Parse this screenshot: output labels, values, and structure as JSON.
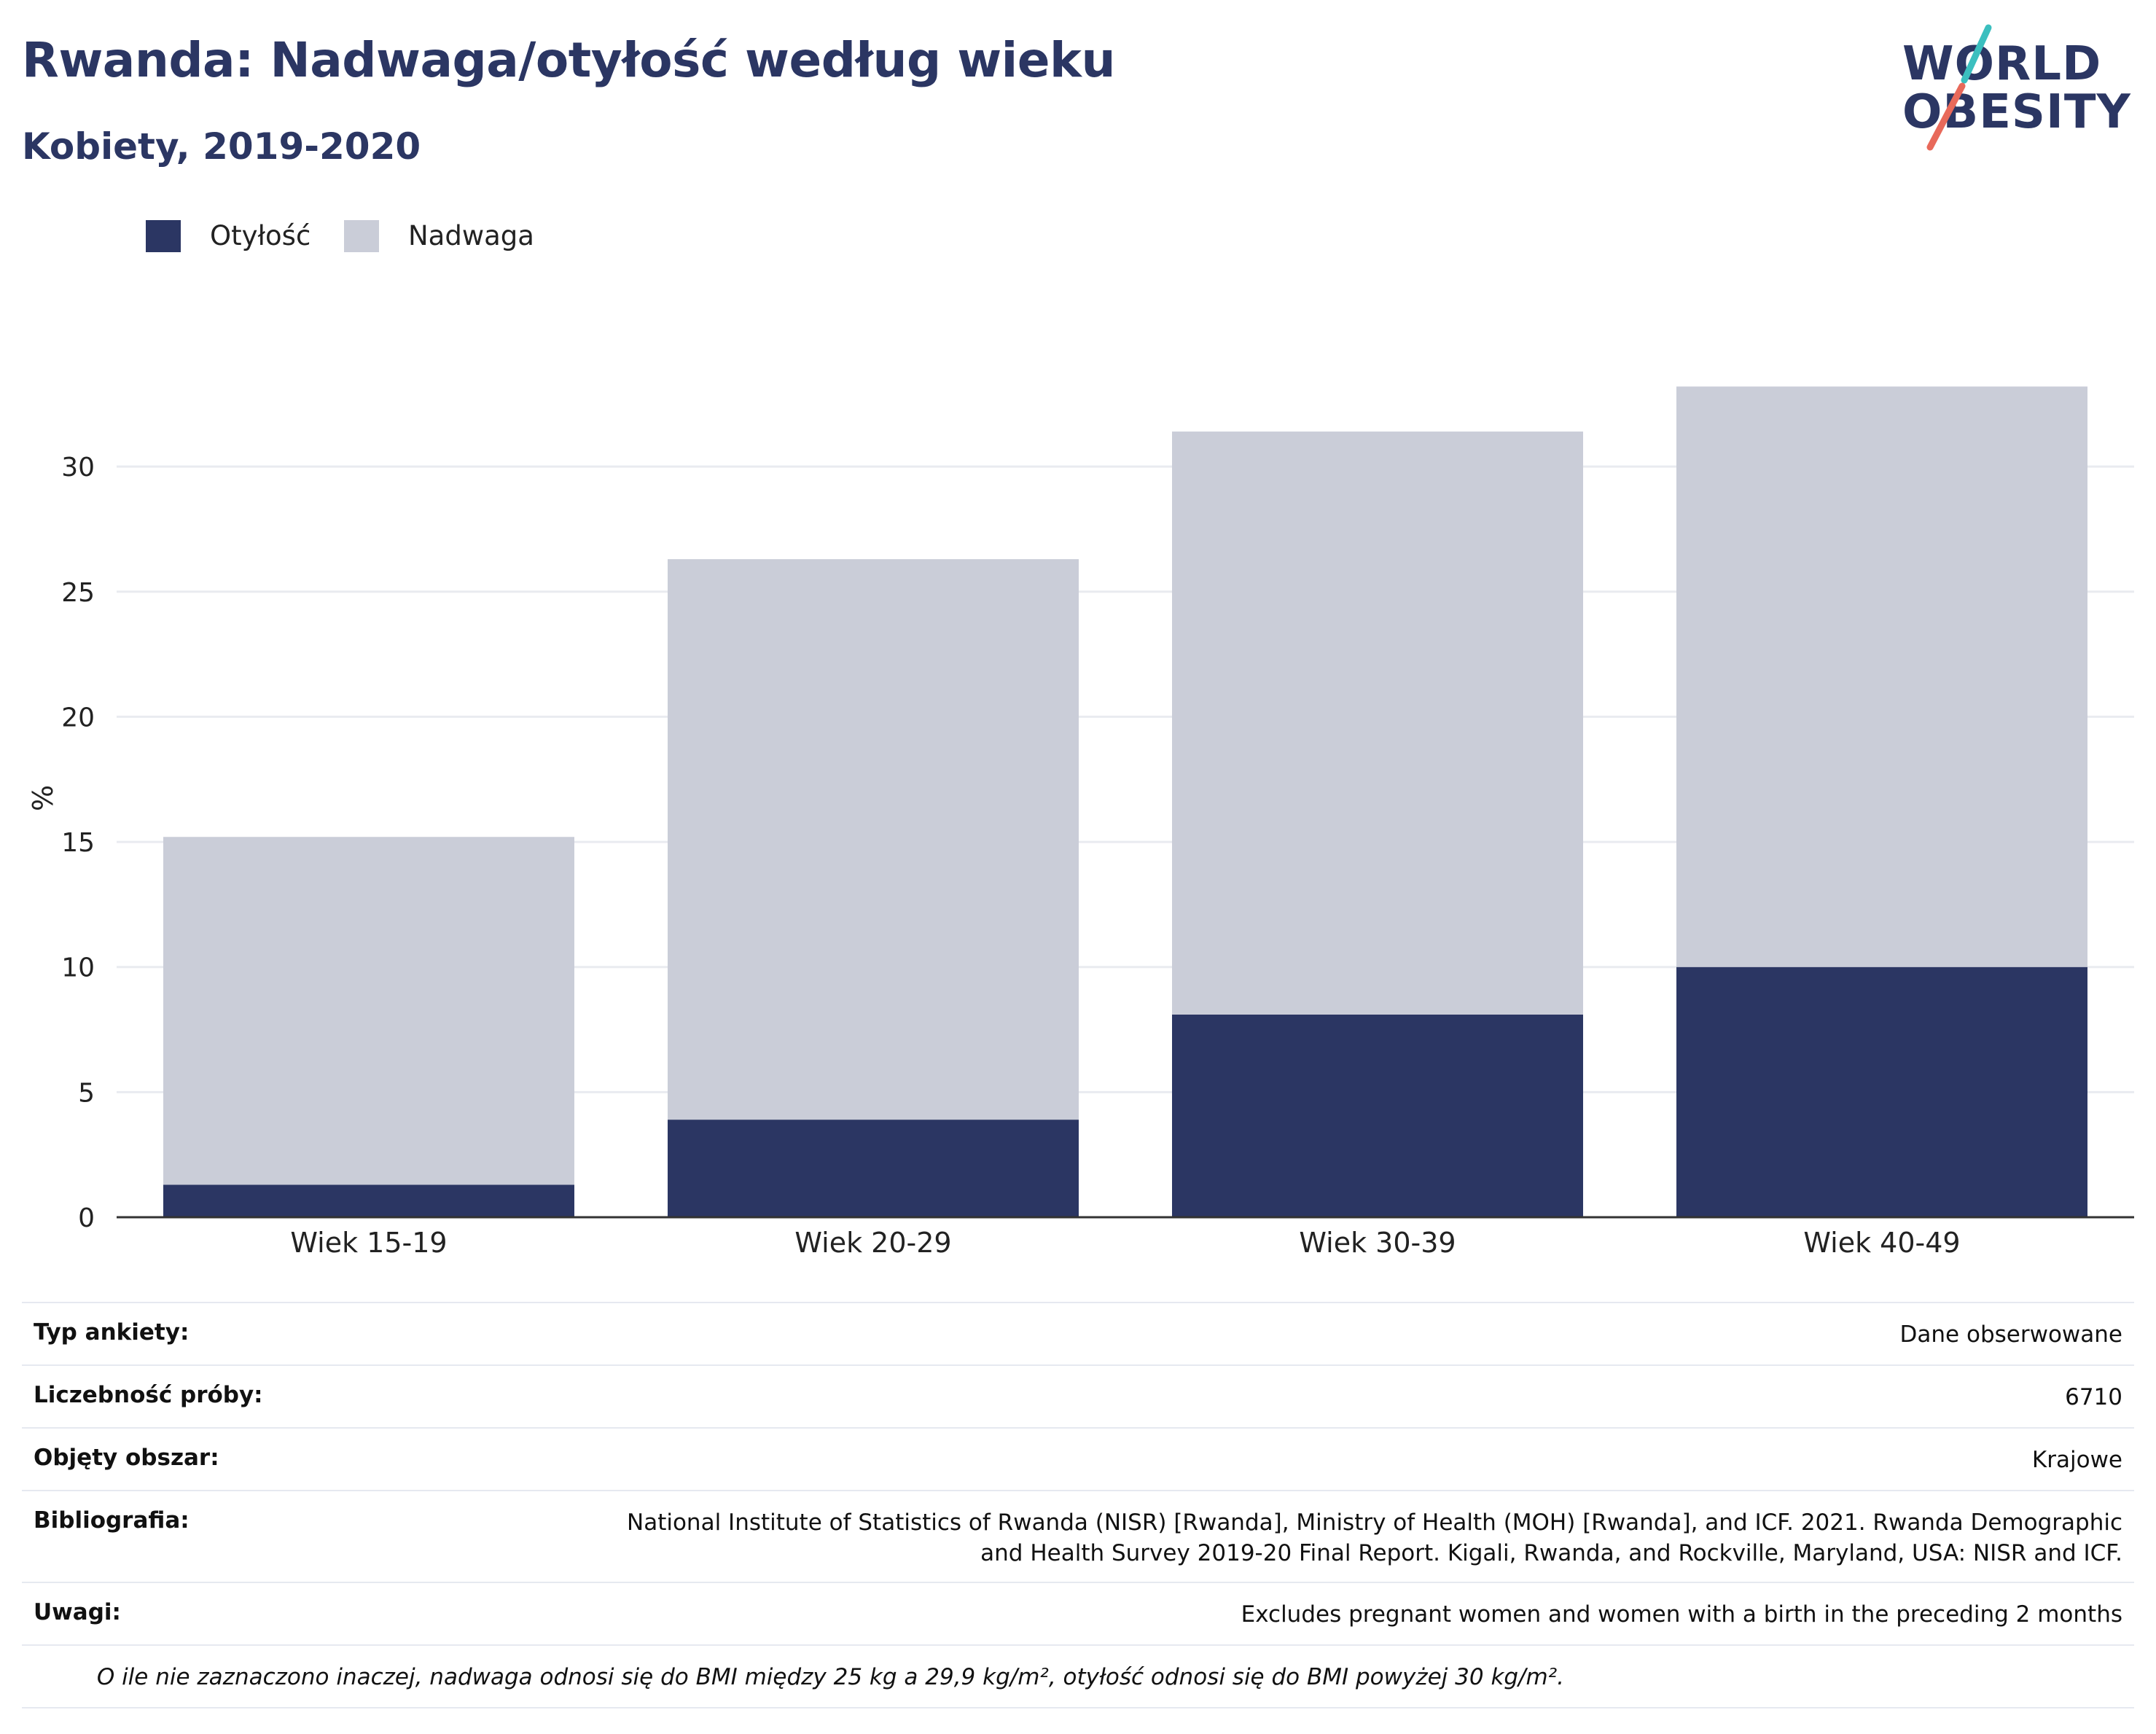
{
  "header": {
    "title": "Rwanda: Nadwaga/otyłość według wieku",
    "subtitle": "Kobiety, 2019-2020"
  },
  "logo": {
    "line1": "WORLD",
    "line2": "OBESITY",
    "accent_colors": [
      "#3bbfbf",
      "#e8695a"
    ]
  },
  "colors": {
    "obesity": "#2b3663",
    "overweight": "#cacdd8",
    "title": "#2b3663"
  },
  "chart_data": {
    "type": "bar",
    "stacked": true,
    "categories": [
      "Wiek 15-19",
      "Wiek 20-29",
      "Wiek 30-39",
      "Wiek 40-49"
    ],
    "series": [
      {
        "name": "Otyłość",
        "values": [
          1.3,
          3.9,
          8.1,
          10.0
        ],
        "color": "#2b3663"
      },
      {
        "name": "Nadwaga",
        "values": [
          13.9,
          22.4,
          23.3,
          23.2
        ],
        "color": "#cacdd8"
      }
    ],
    "ylabel": "%",
    "ylim": [
      0,
      33.5
    ],
    "yticks": [
      0,
      5,
      10,
      15,
      20,
      25,
      30
    ],
    "grid": true,
    "legend_position": "top-left"
  },
  "details": [
    {
      "label": "Typ ankiety:",
      "value": "Dane obserwowane"
    },
    {
      "label": "Liczebność próby:",
      "value": "6710"
    },
    {
      "label": "Objęty obszar:",
      "value": "Krajowe"
    },
    {
      "label": "Bibliografia:",
      "value": "National Institute of Statistics of Rwanda (NISR) [Rwanda], Ministry of Health (MOH) [Rwanda], and ICF. 2021. Rwanda Demographic and Health Survey 2019-20 Final Report. Kigali, Rwanda, and Rockville, Maryland, USA: NISR and ICF."
    },
    {
      "label": "Uwagi:",
      "value": "Excludes pregnant women and women with a birth in the preceding 2 months"
    }
  ],
  "footnote": "O ile nie zaznaczono inaczej, nadwaga odnosi się do BMI między 25 kg a 29,9 kg/m², otyłość odnosi się do BMI powyżej 30 kg/m²."
}
